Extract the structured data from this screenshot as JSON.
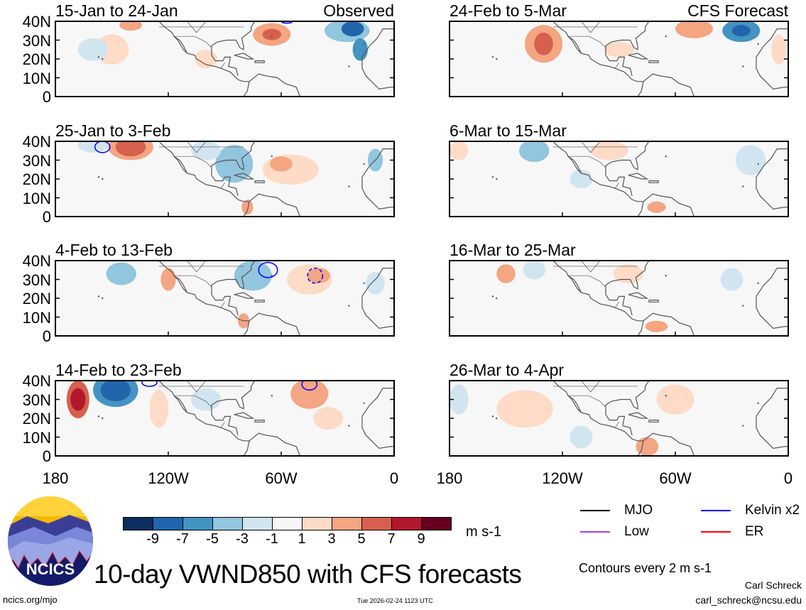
{
  "panels": [
    {
      "title": "15-Jan to 24-Jan",
      "tag": "Observed"
    },
    {
      "title": "24-Feb to 5-Mar",
      "tag": "CFS Forecast"
    },
    {
      "title": "25-Jan to 3-Feb",
      "tag": ""
    },
    {
      "title": "6-Mar to 15-Mar",
      "tag": ""
    },
    {
      "title": "4-Feb to 13-Feb",
      "tag": ""
    },
    {
      "title": "16-Mar to 25-Mar",
      "tag": ""
    },
    {
      "title": "14-Feb to 23-Feb",
      "tag": ""
    },
    {
      "title": "26-Mar to 4-Apr",
      "tag": ""
    }
  ],
  "lat_ticks": [
    "40N",
    "30N",
    "20N",
    "10N",
    "0"
  ],
  "lon_ticks": [
    "180",
    "120W",
    "60W",
    "0"
  ],
  "colorbar": {
    "labels": [
      "-9",
      "-7",
      "-5",
      "-3",
      "-1",
      "1",
      "3",
      "5",
      "7",
      "9"
    ],
    "colors": [
      "#0b2f5e",
      "#2166ac",
      "#4393c3",
      "#92c5de",
      "#d1e5f0",
      "#f7f7f7",
      "#fddbc7",
      "#f4a582",
      "#d6604d",
      "#b2182b",
      "#67001f"
    ],
    "units": "m s-1"
  },
  "legend": [
    {
      "label": "MJO",
      "color": "#000000"
    },
    {
      "label": "Kelvin x2",
      "color": "#0000ff"
    },
    {
      "label": "Low",
      "color": "#a040f0"
    },
    {
      "label": "ER",
      "color": "#ff0000"
    }
  ],
  "contour_note": "Contours every 2 m s-1",
  "title": "10-day VWND850 with CFS forecasts",
  "logo_text": "NCICS",
  "site": "ncics.org/mjo",
  "timestamp": "Tue 2026-02-24 1123 UTC",
  "author": "Carl Schreck",
  "email": "carl_schreck@ncsu.edu"
}
